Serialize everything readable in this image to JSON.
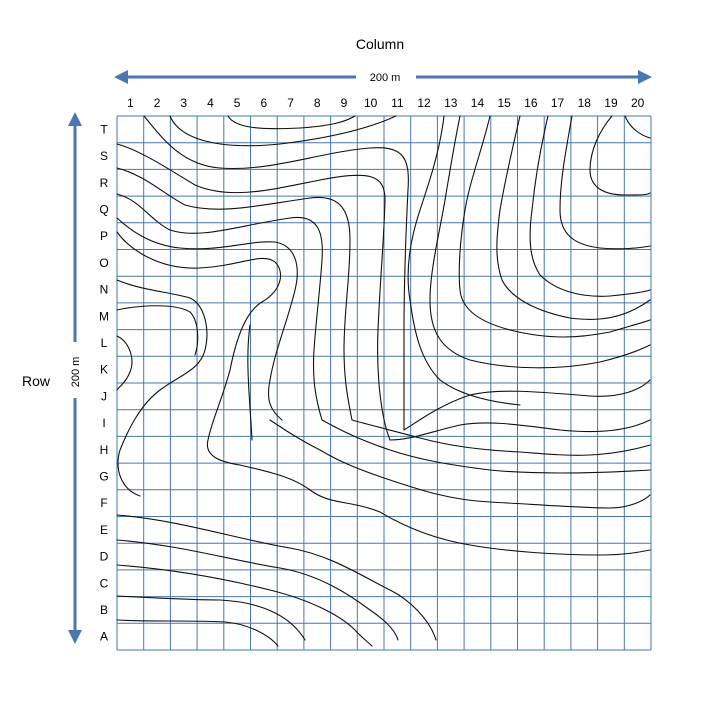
{
  "map": {
    "column_title": "Column",
    "row_title": "Row",
    "width_label": "200 m",
    "height_label": "200 m",
    "columns": [
      "1",
      "2",
      "3",
      "4",
      "5",
      "6",
      "7",
      "8",
      "9",
      "10",
      "11",
      "12",
      "13",
      "14",
      "15",
      "16",
      "17",
      "18",
      "19",
      "20"
    ],
    "rows_top_to_bottom": [
      "T",
      "S",
      "R",
      "Q",
      "P",
      "O",
      "N",
      "M",
      "L",
      "K",
      "J",
      "I",
      "H",
      "G",
      "F",
      "E",
      "D",
      "C",
      "B",
      "A"
    ],
    "grid_color": "#4a77b0",
    "contour_color": "#111111"
  }
}
